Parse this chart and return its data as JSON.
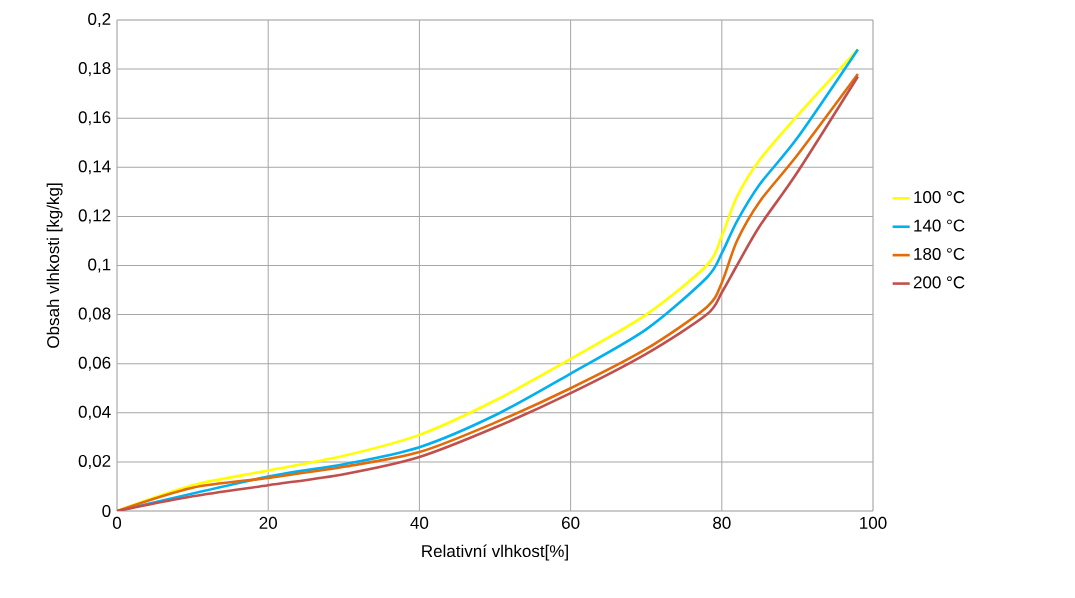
{
  "chart_data": {
    "type": "line",
    "xlabel": "Relativní vlhkost[%]",
    "ylabel": "Obsah vlhkosti [kg/kg]",
    "x": [
      0,
      10,
      20,
      30,
      40,
      50,
      60,
      70,
      78,
      80,
      82,
      85,
      90,
      98
    ],
    "series": [
      {
        "name": "100 °C",
        "color": "#ffff00",
        "values": [
          0,
          0.0105,
          0.0165,
          0.0225,
          0.031,
          0.045,
          0.062,
          0.08,
          0.1,
          0.112,
          0.128,
          0.143,
          0.161,
          0.188
        ]
      },
      {
        "name": "140 °C",
        "color": "#00b0f0",
        "values": [
          0,
          null,
          0.014,
          0.019,
          0.026,
          0.039,
          0.056,
          0.074,
          0.095,
          0.105,
          0.118,
          0.133,
          0.152,
          0.188
        ]
      },
      {
        "name": "180 °C",
        "color": "#e36c09",
        "values": [
          0,
          0.0095,
          0.0135,
          0.018,
          0.024,
          0.036,
          0.05,
          0.066,
          0.083,
          0.093,
          0.11,
          0.126,
          0.145,
          0.178
        ]
      },
      {
        "name": "200 °C",
        "color": "#c0504d",
        "values": [
          0,
          0.006,
          0.0105,
          0.015,
          0.022,
          0.034,
          0.048,
          0.064,
          0.08,
          0.089,
          0.1,
          0.116,
          0.138,
          0.177
        ]
      }
    ],
    "xlim": [
      0,
      100
    ],
    "xticks": [
      0,
      20,
      40,
      60,
      80,
      100
    ],
    "ylim": [
      0,
      0.2
    ],
    "yticks": [
      0,
      {
        "value": 0.02,
        "label": "0,02"
      },
      {
        "value": 0.04,
        "label": "0,04"
      },
      {
        "value": 0.06,
        "label": "0,06"
      },
      {
        "value": 0.08,
        "label": "0,08"
      },
      {
        "value": 0.1,
        "label": "0,1"
      },
      {
        "value": 0.12,
        "label": "0,12"
      },
      {
        "value": 0.14,
        "label": "0,14"
      },
      {
        "value": 0.16,
        "label": "0,16"
      },
      {
        "value": 0.18,
        "label": "0,18"
      },
      {
        "value": 0.2,
        "label": "0,2"
      }
    ],
    "grid": true,
    "legend": "right",
    "marker": "none",
    "line_style": "solid"
  }
}
